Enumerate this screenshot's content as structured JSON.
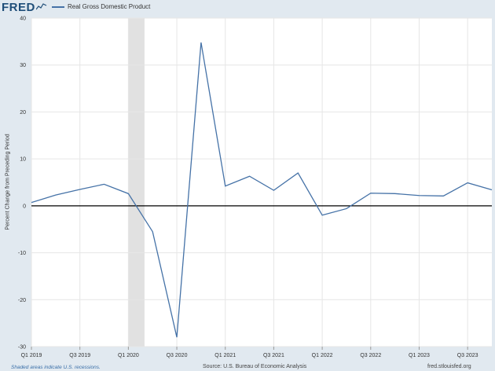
{
  "header": {
    "logo": "FRED",
    "legend_label": "Real Gross Domestic Product"
  },
  "footer": {
    "recession_note": "Shaded areas indicate U.S. recessions.",
    "source": "Source: U.S. Bureau of Economic Analysis",
    "site": "fred.stlouisfed.org"
  },
  "colors": {
    "series": "#4572a7",
    "recession": "#e1e1e1",
    "background": "#e1e9f0",
    "plot": "#ffffff"
  },
  "chart_data": {
    "type": "line",
    "title": "",
    "xlabel": "",
    "ylabel": "Percent Change from Preceding Period",
    "ylim": [
      -30,
      40
    ],
    "yticks": [
      -30,
      -20,
      -10,
      0,
      10,
      20,
      30,
      40
    ],
    "grid": true,
    "legend_position": "top-left",
    "x": [
      "2019-Q1",
      "2019-Q2",
      "2019-Q3",
      "2019-Q4",
      "2020-Q1",
      "2020-Q2",
      "2020-Q3",
      "2020-Q4",
      "2021-Q1",
      "2021-Q2",
      "2021-Q3",
      "2021-Q4",
      "2022-Q1",
      "2022-Q2",
      "2022-Q3",
      "2022-Q4",
      "2023-Q1",
      "2023-Q2",
      "2023-Q3",
      "2023-Q4"
    ],
    "xtick_labels": [
      "Q1 2019",
      "Q3 2019",
      "Q1 2020",
      "Q3 2020",
      "Q1 2021",
      "Q3 2021",
      "Q1 2022",
      "Q3 2022",
      "Q1 2023",
      "Q3 2023"
    ],
    "xtick_quarters": [
      "2019-Q1",
      "2019-Q3",
      "2020-Q1",
      "2020-Q3",
      "2021-Q1",
      "2021-Q3",
      "2022-Q1",
      "2022-Q3",
      "2023-Q1",
      "2023-Q3"
    ],
    "recessions": [
      {
        "start": "2020-02",
        "end": "2020-04"
      }
    ],
    "series": [
      {
        "name": "Real Gross Domestic Product",
        "values": [
          0.7,
          2.3,
          3.5,
          4.6,
          2.6,
          -5.5,
          -28.0,
          34.8,
          4.2,
          6.3,
          3.3,
          7.0,
          -2.0,
          -0.6,
          2.7,
          2.6,
          2.2,
          2.1,
          4.9,
          3.4
        ]
      }
    ]
  }
}
